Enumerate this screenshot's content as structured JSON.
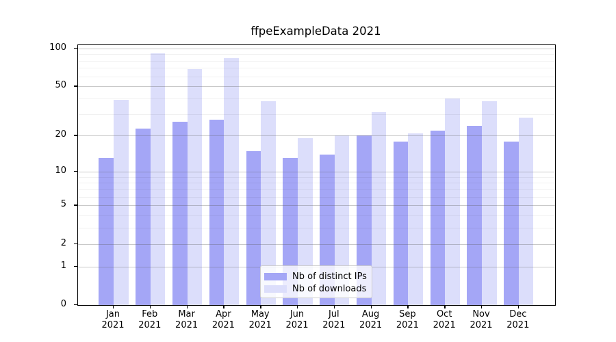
{
  "chart_data": {
    "type": "bar",
    "title": "ffpeExampleData 2021",
    "categories": [
      "Jan",
      "Feb",
      "Mar",
      "Apr",
      "May",
      "Jun",
      "Jul",
      "Aug",
      "Sep",
      "Oct",
      "Nov",
      "Dec"
    ],
    "category_year": "2021",
    "series": [
      {
        "name": "Nb of distinct IPs",
        "color": "#a4a6f6",
        "values": [
          13,
          23,
          26,
          27,
          15,
          13,
          14,
          20,
          18,
          22,
          24,
          18
        ]
      },
      {
        "name": "Nb of downloads",
        "color": "#dcdefb",
        "values": [
          39,
          91,
          69,
          84,
          38,
          19,
          20,
          31,
          21,
          40,
          38,
          28
        ]
      }
    ],
    "yscale": "log1p",
    "ylim": [
      0,
      106
    ],
    "y_ticks": [
      0,
      1,
      2,
      5,
      10,
      20,
      50,
      100
    ],
    "y_minor_gridlines": [
      3,
      4,
      6,
      7,
      8,
      9,
      30,
      40,
      60,
      70,
      80,
      90
    ],
    "grid": "horizontal",
    "legend_position": "lower-center"
  },
  "colors": {
    "grid_major": "#c9c9c9",
    "grid_minor": "#ececec",
    "axis": "#000000",
    "background": "#ffffff"
  }
}
